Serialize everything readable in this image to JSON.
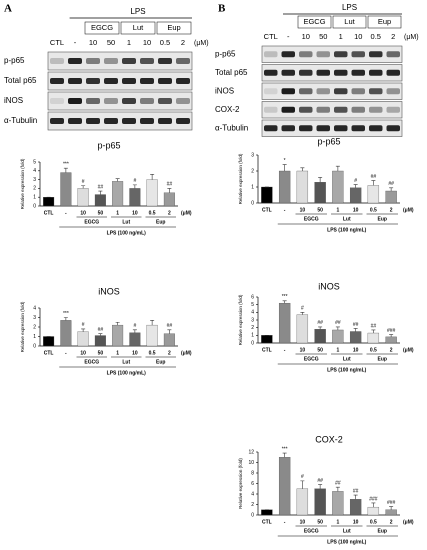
{
  "panels": [
    "A",
    "B"
  ],
  "blots": [
    {
      "header": "LPS",
      "groups": [
        "EGCG",
        "Lut",
        "Eup"
      ],
      "lanes": [
        "CTL",
        "-",
        "10",
        "50",
        "1",
        "10",
        "0.5",
        "2"
      ],
      "unit": "(μM)",
      "rows": [
        "p-p65",
        "Total p65",
        "iNOS",
        "α-Tubulin"
      ]
    },
    {
      "header": "LPS",
      "groups": [
        "EGCG",
        "Lut",
        "Eup"
      ],
      "lanes": [
        "CTL",
        "-",
        "10",
        "50",
        "1",
        "10",
        "0.5",
        "2"
      ],
      "unit": "(μM)",
      "rows": [
        "p-p65",
        "Total p65",
        "iNOS",
        "COX-2",
        "α-Tubulin"
      ]
    }
  ],
  "chart_data": [
    {
      "type": "bar",
      "title": "p-p65",
      "ylabel": "Relative expression (fold)",
      "xlabel": "LPS (100 ng/mL)",
      "unit": "(μM)",
      "groups": [
        "EGCG",
        "Lut",
        "Eup"
      ],
      "categories": [
        "CTL",
        "-",
        "10",
        "50",
        "1",
        "10",
        "0.5",
        "2"
      ],
      "values": [
        1,
        3.8,
        2.0,
        1.3,
        2.8,
        2.0,
        3.0,
        1.5
      ],
      "errors": [
        0,
        0.5,
        0.3,
        0.4,
        0.3,
        0.4,
        0.6,
        0.5
      ],
      "annotations": [
        null,
        "***",
        "#",
        "##",
        null,
        "#",
        null,
        "##"
      ],
      "colors": [
        "#000000",
        "#8a8a8a",
        "#dddddd",
        "#555555",
        "#a8a8a8",
        "#666666",
        "#e6e6e6",
        "#9a9a9a"
      ],
      "ylim": [
        0,
        5
      ],
      "yticks": [
        0,
        1,
        2,
        3,
        4,
        5
      ]
    },
    {
      "type": "bar",
      "title": "iNOS",
      "ylabel": "Relative expression (fold)",
      "xlabel": "LPS (100 ng/mL)",
      "unit": "(μM)",
      "groups": [
        "EGCG",
        "Lut",
        "Eup"
      ],
      "categories": [
        "CTL",
        "-",
        "10",
        "50",
        "1",
        "10",
        "0.5",
        "2"
      ],
      "values": [
        1,
        2.7,
        1.5,
        1.1,
        2.2,
        1.4,
        2.2,
        1.3
      ],
      "errors": [
        0,
        0.3,
        0.3,
        0.2,
        0.3,
        0.3,
        0.5,
        0.4
      ],
      "annotations": [
        null,
        "***",
        "#",
        "##",
        null,
        "#",
        null,
        "##"
      ],
      "colors": [
        "#000000",
        "#8a8a8a",
        "#dddddd",
        "#555555",
        "#a8a8a8",
        "#666666",
        "#e6e6e6",
        "#9a9a9a"
      ],
      "ylim": [
        0,
        4
      ],
      "yticks": [
        0,
        1,
        2,
        3,
        4
      ]
    },
    {
      "type": "bar",
      "title": "p-p65",
      "ylabel": "Relative expression (fold)",
      "xlabel": "LPS (100 ng/mL)",
      "unit": "(μM)",
      "groups": [
        "EGCG",
        "Lut",
        "Eup"
      ],
      "categories": [
        "CTL",
        "-",
        "10",
        "50",
        "1",
        "10",
        "0.5",
        "2"
      ],
      "values": [
        1,
        2.0,
        2.0,
        1.3,
        2.0,
        0.95,
        1.1,
        0.75
      ],
      "errors": [
        0,
        0.4,
        0.2,
        0.3,
        0.3,
        0.2,
        0.3,
        0.2
      ],
      "annotations": [
        null,
        "*",
        null,
        null,
        null,
        "#",
        "##",
        "##"
      ],
      "colors": [
        "#000000",
        "#8a8a8a",
        "#dddddd",
        "#555555",
        "#a8a8a8",
        "#666666",
        "#e6e6e6",
        "#9a9a9a"
      ],
      "ylim": [
        0,
        3
      ],
      "yticks": [
        0,
        1,
        2,
        3
      ]
    },
    {
      "type": "bar",
      "title": "iNOS",
      "ylabel": "Relative expression (fold)",
      "xlabel": "LPS (100 ng/mL)",
      "unit": "(μM)",
      "groups": [
        "EGCG",
        "Lut",
        "Eup"
      ],
      "categories": [
        "CTL",
        "-",
        "10",
        "50",
        "1",
        "10",
        "0.5",
        "2"
      ],
      "values": [
        1,
        5.2,
        3.7,
        1.8,
        1.7,
        1.5,
        1.3,
        0.8
      ],
      "errors": [
        0,
        0.3,
        0.3,
        0.3,
        0.4,
        0.4,
        0.4,
        0.3
      ],
      "annotations": [
        null,
        "***",
        "#",
        "##",
        "##",
        "##",
        "##",
        "###"
      ],
      "colors": [
        "#000000",
        "#8a8a8a",
        "#dddddd",
        "#555555",
        "#a8a8a8",
        "#666666",
        "#e6e6e6",
        "#9a9a9a"
      ],
      "ylim": [
        0,
        6
      ],
      "yticks": [
        0,
        1,
        2,
        3,
        4,
        5,
        6
      ]
    },
    {
      "type": "bar",
      "title": "COX-2",
      "ylabel": "Relative expression (fold)",
      "xlabel": "LPS (100 ng/mL)",
      "unit": "(μM)",
      "groups": [
        "EGCG",
        "Lut",
        "Eup"
      ],
      "categories": [
        "CTL",
        "-",
        "10",
        "50",
        "1",
        "10",
        "0.5",
        "2"
      ],
      "values": [
        1,
        11,
        5,
        5,
        4.5,
        3,
        1.5,
        1
      ],
      "errors": [
        0,
        0.8,
        1.5,
        0.8,
        0.8,
        0.8,
        0.8,
        0.6
      ],
      "annotations": [
        null,
        "***",
        "#",
        "##",
        "##",
        "##",
        "###",
        "###"
      ],
      "colors": [
        "#000000",
        "#8a8a8a",
        "#dddddd",
        "#555555",
        "#a8a8a8",
        "#666666",
        "#e6e6e6",
        "#9a9a9a"
      ],
      "ylim": [
        0,
        12
      ],
      "yticks": [
        0,
        2,
        4,
        6,
        8,
        10,
        12
      ]
    }
  ]
}
